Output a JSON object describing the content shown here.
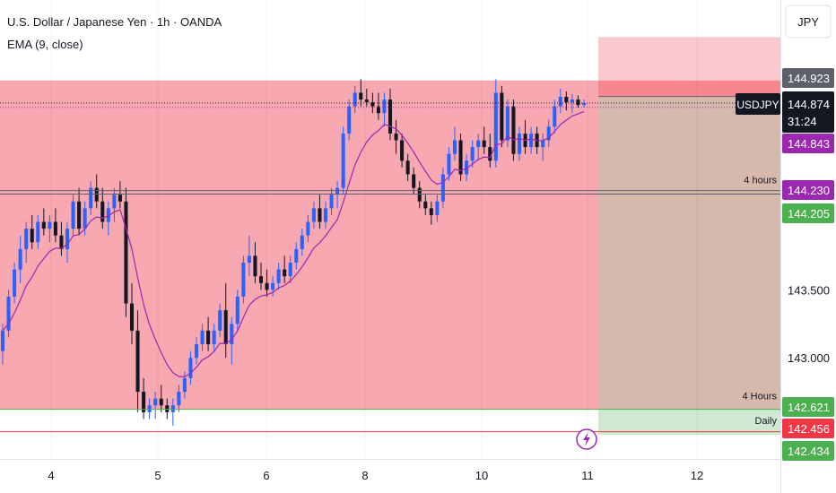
{
  "header": {
    "title": "U.S. Dollar / Japanese Yen · 1h · OANDA",
    "indicator": "EMA (9, close)"
  },
  "chart_data": {
    "type": "candlestick",
    "symbol": "USDJPY",
    "currency_label": "JPY",
    "price_range": [
      142.3,
      145.1
    ],
    "y_ticks": [
      "143.000",
      "143.500"
    ],
    "x_ticks": [
      "4",
      "5",
      "6",
      "8",
      "10",
      "11",
      "12"
    ],
    "last_price": {
      "symbol": "USDJPY",
      "value": "144.874",
      "countdown": "31:24"
    },
    "price_badges": [
      {
        "value": "144.923",
        "color": "#5d606b"
      },
      {
        "value": "144.843",
        "color": "#9c27b0"
      },
      {
        "value": "144.230",
        "color": "#9c27b0"
      },
      {
        "value": "144.205",
        "color": "#4caf50"
      },
      {
        "value": "142.621",
        "color": "#4caf50"
      },
      {
        "value": "142.456",
        "color": "#f23645"
      },
      {
        "value": "142.434",
        "color": "#4caf50"
      }
    ],
    "zone_labels": [
      {
        "text": "4 hours",
        "price": 144.27
      },
      {
        "text": "4 Hours",
        "price": 142.68
      },
      {
        "text": "Daily",
        "price": 142.5
      }
    ],
    "zones": [
      {
        "name": "supply-4h-zone",
        "from": 142.621,
        "to": 145.04,
        "color": "#f7a8b0"
      },
      {
        "name": "risk-zone",
        "from": 144.923,
        "to": 145.36,
        "color": "#fbc9cd"
      },
      {
        "name": "stop-zone",
        "from": 144.923,
        "to": 145.04,
        "color": "#f8868f"
      },
      {
        "name": "reward-zone",
        "from": 142.621,
        "to": 144.923,
        "color": "#d6b9ad"
      },
      {
        "name": "target-zone",
        "from": 142.434,
        "to": 142.621,
        "color": "#cfe8d2"
      }
    ],
    "h_lines": [
      {
        "price": 144.874,
        "style": "dotted",
        "color": "#131722"
      },
      {
        "price": 144.923,
        "style": "solid",
        "color": "#5d606b"
      },
      {
        "price": 144.843,
        "style": "dotted",
        "color": "#9c27b0"
      },
      {
        "price": 144.23,
        "style": "solid",
        "color": "#5d606b"
      },
      {
        "price": 144.205,
        "style": "solid",
        "color": "#5d606b"
      },
      {
        "price": 142.621,
        "style": "solid",
        "color": "#4caf50"
      },
      {
        "price": 142.456,
        "style": "solid",
        "color": "#f23645"
      }
    ],
    "colors": {
      "up": "#2962ff",
      "down": "#131722",
      "ema": "#9c27b0"
    },
    "candles": [
      [
        143.05,
        143.25,
        142.95,
        143.2
      ],
      [
        143.2,
        143.5,
        143.15,
        143.45
      ],
      [
        143.45,
        143.7,
        143.4,
        143.65
      ],
      [
        143.65,
        143.9,
        143.55,
        143.8
      ],
      [
        143.8,
        144.0,
        143.7,
        143.95
      ],
      [
        143.95,
        144.05,
        143.8,
        143.85
      ],
      [
        143.85,
        144.05,
        143.8,
        144.0
      ],
      [
        144.0,
        144.1,
        143.9,
        143.95
      ],
      [
        143.95,
        144.05,
        143.85,
        144.0
      ],
      [
        144.0,
        144.1,
        143.85,
        143.9
      ],
      [
        143.9,
        144.0,
        143.75,
        143.8
      ],
      [
        143.8,
        144.0,
        143.7,
        143.95
      ],
      [
        143.95,
        144.2,
        143.9,
        144.15
      ],
      [
        144.15,
        144.25,
        143.9,
        143.95
      ],
      [
        143.95,
        144.15,
        143.9,
        144.1
      ],
      [
        144.1,
        144.3,
        144.05,
        144.25
      ],
      [
        144.25,
        144.35,
        144.1,
        144.15
      ],
      [
        144.15,
        144.25,
        143.95,
        144.0
      ],
      [
        144.0,
        144.15,
        143.9,
        144.1
      ],
      [
        144.1,
        144.25,
        144.0,
        144.2
      ],
      [
        144.2,
        144.3,
        144.1,
        144.15
      ],
      [
        144.15,
        144.25,
        143.3,
        143.4
      ],
      [
        143.4,
        143.55,
        143.1,
        143.2
      ],
      [
        143.2,
        143.35,
        142.6,
        142.75
      ],
      [
        142.75,
        142.85,
        142.55,
        142.6
      ],
      [
        142.6,
        142.7,
        142.55,
        142.65
      ],
      [
        142.65,
        142.75,
        142.55,
        142.7
      ],
      [
        142.7,
        142.8,
        142.6,
        142.65
      ],
      [
        142.65,
        142.7,
        142.55,
        142.6
      ],
      [
        142.6,
        142.7,
        142.5,
        142.65
      ],
      [
        142.65,
        142.8,
        142.6,
        142.75
      ],
      [
        142.75,
        142.9,
        142.7,
        142.85
      ],
      [
        142.85,
        143.05,
        142.8,
        143.0
      ],
      [
        143.0,
        143.15,
        142.95,
        143.1
      ],
      [
        143.1,
        143.25,
        143.05,
        143.2
      ],
      [
        143.2,
        143.3,
        143.05,
        143.1
      ],
      [
        143.1,
        143.25,
        143.05,
        143.2
      ],
      [
        143.2,
        143.4,
        143.15,
        143.35
      ],
      [
        143.35,
        143.55,
        143.0,
        143.1
      ],
      [
        143.1,
        143.3,
        142.95,
        143.25
      ],
      [
        143.25,
        143.5,
        143.2,
        143.45
      ],
      [
        143.45,
        143.75,
        143.4,
        143.7
      ],
      [
        143.7,
        143.9,
        143.6,
        143.75
      ],
      [
        143.75,
        143.85,
        143.55,
        143.6
      ],
      [
        143.6,
        143.7,
        143.5,
        143.55
      ],
      [
        143.55,
        143.65,
        143.45,
        143.5
      ],
      [
        143.5,
        143.6,
        143.45,
        143.55
      ],
      [
        143.55,
        143.7,
        143.5,
        143.65
      ],
      [
        143.65,
        143.75,
        143.55,
        143.6
      ],
      [
        143.6,
        143.75,
        143.55,
        143.7
      ],
      [
        143.7,
        143.85,
        143.65,
        143.8
      ],
      [
        143.8,
        143.95,
        143.75,
        143.9
      ],
      [
        143.9,
        144.05,
        143.85,
        144.0
      ],
      [
        144.0,
        144.15,
        143.95,
        144.1
      ],
      [
        144.1,
        144.2,
        143.95,
        144.0
      ],
      [
        144.0,
        144.15,
        143.95,
        144.1
      ],
      [
        144.1,
        144.25,
        144.05,
        144.2
      ],
      [
        144.2,
        144.3,
        144.1,
        144.25
      ],
      [
        144.25,
        144.7,
        144.2,
        144.65
      ],
      [
        144.65,
        144.9,
        144.6,
        144.85
      ],
      [
        144.85,
        145.0,
        144.8,
        144.95
      ],
      [
        144.95,
        145.05,
        144.85,
        144.9
      ],
      [
        144.9,
        144.98,
        144.85,
        144.88
      ],
      [
        144.88,
        144.95,
        144.8,
        144.85
      ],
      [
        144.85,
        144.95,
        144.75,
        144.8
      ],
      [
        144.8,
        144.95,
        144.7,
        144.9
      ],
      [
        144.9,
        144.98,
        144.6,
        144.65
      ],
      [
        144.65,
        144.75,
        144.5,
        144.6
      ],
      [
        144.6,
        144.65,
        144.4,
        144.45
      ],
      [
        144.45,
        144.5,
        144.3,
        144.35
      ],
      [
        144.35,
        144.4,
        144.2,
        144.25
      ],
      [
        144.25,
        144.3,
        144.1,
        144.15
      ],
      [
        144.15,
        144.2,
        144.05,
        144.1
      ],
      [
        144.1,
        144.15,
        143.98,
        144.05
      ],
      [
        144.05,
        144.2,
        144.0,
        144.15
      ],
      [
        144.15,
        144.4,
        144.1,
        144.35
      ],
      [
        144.35,
        144.55,
        144.3,
        144.5
      ],
      [
        144.5,
        144.7,
        144.45,
        144.6
      ],
      [
        144.6,
        144.65,
        144.3,
        144.35
      ],
      [
        144.35,
        144.5,
        144.3,
        144.45
      ],
      [
        144.45,
        144.6,
        144.4,
        144.55
      ],
      [
        144.55,
        144.65,
        144.45,
        144.6
      ],
      [
        144.6,
        144.7,
        144.5,
        144.55
      ],
      [
        144.55,
        144.65,
        144.4,
        144.45
      ],
      [
        144.45,
        145.05,
        144.4,
        144.95
      ],
      [
        144.95,
        145.0,
        144.55,
        144.6
      ],
      [
        144.6,
        144.9,
        144.55,
        144.85
      ],
      [
        144.85,
        144.9,
        144.45,
        144.5
      ],
      [
        144.5,
        144.7,
        144.45,
        144.65
      ],
      [
        144.65,
        144.75,
        144.5,
        144.55
      ],
      [
        144.55,
        144.7,
        144.5,
        144.65
      ],
      [
        144.65,
        144.7,
        144.5,
        144.55
      ],
      [
        144.55,
        144.65,
        144.45,
        144.6
      ],
      [
        144.6,
        144.75,
        144.55,
        144.7
      ],
      [
        144.7,
        144.9,
        144.65,
        144.85
      ],
      [
        144.85,
        144.98,
        144.8,
        144.92
      ],
      [
        144.92,
        144.96,
        144.82,
        144.88
      ],
      [
        144.88,
        144.94,
        144.8,
        144.9
      ],
      [
        144.9,
        144.93,
        144.84,
        144.86
      ],
      [
        144.86,
        144.9,
        144.84,
        144.874
      ]
    ]
  }
}
